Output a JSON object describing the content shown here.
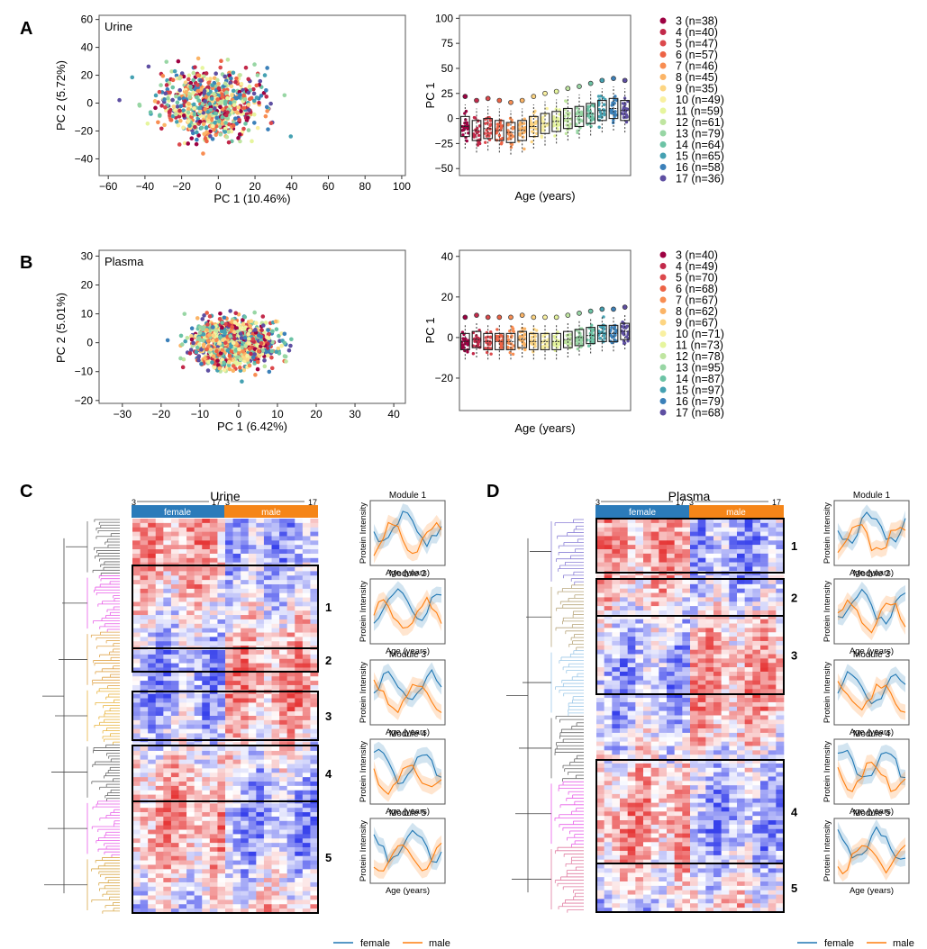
{
  "panels": {
    "A": "A",
    "B": "B",
    "C": "C",
    "D": "D"
  },
  "panelA": {
    "scatter": {
      "label": "Urine",
      "xlabel": "PC 1 (10.46%)",
      "ylabel": "PC 2 (5.72%)",
      "xticks": [
        -60,
        -40,
        -20,
        0,
        20,
        40,
        60,
        80,
        100
      ],
      "yticks": [
        -40,
        -20,
        0,
        20,
        40,
        60
      ],
      "xlim": [
        -65,
        102
      ],
      "ylim": [
        -52,
        63
      ]
    },
    "box": {
      "xlabel": "Age (years)",
      "ylabel": "PC 1",
      "yticks": [
        -50,
        -25,
        0,
        25,
        50,
        75,
        100
      ],
      "ylim": [
        -57,
        103
      ]
    },
    "legend": [
      "3 (n=38)",
      "4 (n=40)",
      "5 (n=47)",
      "6 (n=57)",
      "7 (n=46)",
      "8 (n=45)",
      "9 (n=35)",
      "10 (n=49)",
      "11 (n=59)",
      "12 (n=61)",
      "13 (n=79)",
      "14 (n=64)",
      "15 (n=65)",
      "16 (n=58)",
      "17 (n=36)"
    ]
  },
  "panelB": {
    "scatter": {
      "label": "Plasma",
      "xlabel": "PC 1 (6.42%)",
      "ylabel": "PC 2 (5.01%)",
      "xticks": [
        -30,
        -20,
        -10,
        0,
        10,
        20,
        30,
        40
      ],
      "yticks": [
        -20,
        -10,
        0,
        10,
        20,
        30
      ],
      "xlim": [
        -36,
        43
      ],
      "ylim": [
        -21,
        32
      ]
    },
    "box": {
      "xlabel": "Age (years)",
      "ylabel": "PC 1",
      "yticks": [
        -20,
        0,
        20,
        40
      ],
      "ylim": [
        -36,
        43
      ]
    },
    "legend": [
      "3 (n=40)",
      "4 (n=49)",
      "5 (n=70)",
      "6 (n=68)",
      "7 (n=67)",
      "8 (n=62)",
      "9 (n=67)",
      "10 (n=71)",
      "11 (n=73)",
      "12 (n=78)",
      "13 (n=95)",
      "14 (n=87)",
      "15 (n=97)",
      "16 (n=79)",
      "17 (n=68)"
    ]
  },
  "age_colors": [
    "#9e0142",
    "#c2294a",
    "#dc494c",
    "#ed6345",
    "#f88d52",
    "#fbb466",
    "#fdd582",
    "#f9f0a1",
    "#e6f59d",
    "#bfe5a0",
    "#98d6a4",
    "#6cc3a5",
    "#45a1b2",
    "#3b80b9",
    "#5e4fa2"
  ],
  "heatC": {
    "title": "Urine",
    "start": "3",
    "end": "17",
    "female": "female",
    "male": "male",
    "modules": [
      "1",
      "2",
      "3",
      "4",
      "5"
    ]
  },
  "heatD": {
    "title": "Plasma",
    "start": "3",
    "end": "17",
    "female": "female",
    "male": "male",
    "modules": [
      "1",
      "2",
      "3",
      "4",
      "5"
    ]
  },
  "lineC": [
    {
      "title": "Module 1",
      "ylabel": "Protein Intensity",
      "xlabel": "Age (years)"
    },
    {
      "title": "Module 2",
      "ylabel": "Protein Intensity",
      "xlabel": "Age (years)"
    },
    {
      "title": "Module 3",
      "ylabel": "Protein Intensity",
      "xlabel": "Age (years)"
    },
    {
      "title": "Module 4",
      "ylabel": "Protein Intensity",
      "xlabel": "Age (years)"
    },
    {
      "title": "Module 5",
      "ylabel": "Protein Intensity",
      "xlabel": "Age (years)"
    }
  ],
  "lineD": [
    {
      "title": "Module 1",
      "ylabel": "Protein Intensity",
      "xlabel": "Age (years)"
    },
    {
      "title": "Module 2",
      "ylabel": "Protein Intensity",
      "xlabel": "Age (years)"
    },
    {
      "title": "Module 3",
      "ylabel": "Protein Intensity",
      "xlabel": "Age (years)"
    },
    {
      "title": "Module 4",
      "ylabel": "Protein Intensity",
      "xlabel": "Age (years)"
    },
    {
      "title": "Module 5",
      "ylabel": "Protein Intensity",
      "xlabel": "Age (years)"
    }
  ],
  "lineLegend": {
    "female": "female",
    "male": "male"
  },
  "colors": {
    "female": "#1f77b4",
    "male": "#ff7f0e",
    "femaleBar": "#2b7bba",
    "maleBar": "#f58518"
  }
}
